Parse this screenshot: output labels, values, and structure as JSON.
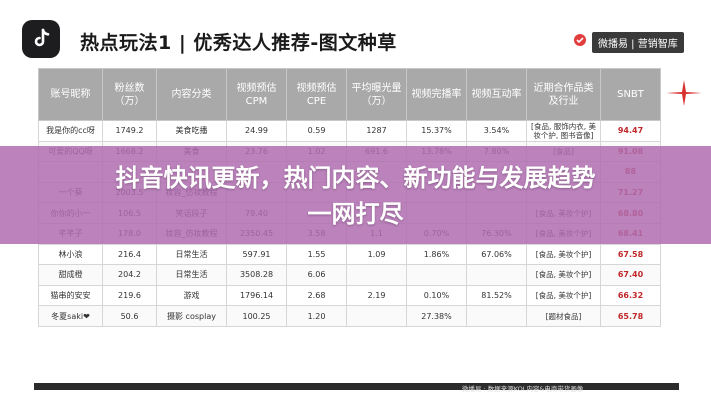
{
  "header": {
    "title": "热点玩法1 | 优秀达人推荐-图文种草",
    "brand": "微播易 | 营销智库"
  },
  "table": {
    "columns": [
      "账号昵称",
      "粉丝数（万）",
      "内容分类",
      "视频预估CPM",
      "视频预估CPE",
      "平均曝光量（万）",
      "视频完播率",
      "视频互动率",
      "近期合作品类及行业",
      "SNBT"
    ],
    "rows": [
      [
        "我是你的cc呀",
        "1749.2",
        "美食吃播",
        "24.99",
        "0.59",
        "1287",
        "15.37%",
        "3.54%",
        "[食品, 服饰内衣, 美妆个护, 图书音像]",
        "94.47"
      ],
      [
        "可爱的QQ呀",
        "1668.2",
        "美食",
        "23.76",
        "1.02",
        "691.6",
        "13.78%",
        "7.80%",
        "[食品]",
        "91.08"
      ],
      [
        "",
        "",
        "",
        "",
        "",
        "",
        "",
        "",
        "",
        "88"
      ],
      [
        "一个葵",
        "2003.5",
        "妆容_仿妆教程",
        "",
        "",
        "",
        "",
        "",
        "",
        "71.27"
      ],
      [
        "你你的小一",
        "106.5",
        "笑话段子",
        "79.40",
        "",
        "",
        "",
        "",
        "[食品, 美妆个护]",
        "68.80"
      ],
      [
        "芊芊子",
        "178.0",
        "妆容_仿妆教程",
        "2350.45",
        "3.58",
        "1.1",
        "0.70%",
        "76.30%",
        "[食品, 美妆个护]",
        "68.41"
      ],
      [
        "林小浪",
        "216.4",
        "日常生活",
        "597.91",
        "1.55",
        "1.09",
        "1.86%",
        "67.06%",
        "[食品, 美妆个护]",
        "67.58"
      ],
      [
        "甜成橙",
        "204.2",
        "日常生活",
        "3508.28",
        "6.06",
        "",
        "",
        "",
        "[食品, 美妆个护]",
        "67.40"
      ],
      [
        "猫串的安安",
        "219.6",
        "游戏",
        "1796.14",
        "2.68",
        "2.19",
        "0.10%",
        "81.52%",
        "[食品, 美妆个护]",
        "66.32"
      ],
      [
        "冬夏saki❤",
        "50.6",
        "摄影 cosplay",
        "100.25",
        "1.20",
        "",
        "27.38%",
        "",
        "[题材食品]",
        "65.78"
      ]
    ]
  },
  "overlay": {
    "line1": "抖音快讯更新，热门内容、新功能与发展趋势",
    "line2": "一网打尽",
    "color": "#af6caf"
  },
  "footer": {
    "text": "微播易 · 数据来源KOL内容&电商带货画像"
  }
}
